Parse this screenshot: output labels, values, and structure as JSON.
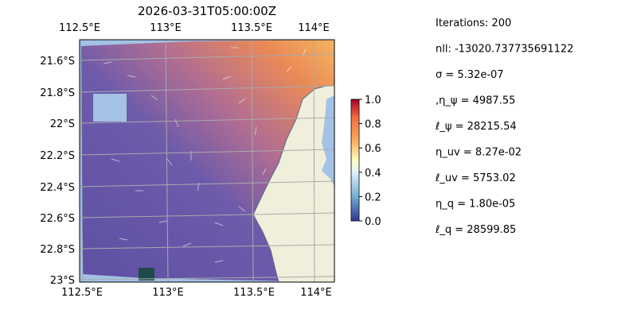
{
  "title": "2026-03-31T05:00:00Z",
  "map": {
    "x_labels_top": [
      "112.5°E",
      "113°E",
      "113.5°E",
      "114°E"
    ],
    "x_labels_bottom": [
      "112.5°E",
      "113°E",
      "113.5°E",
      "114°E"
    ],
    "y_labels": [
      "21.6°S",
      "21.8°S",
      "22°S",
      "22.2°S",
      "22.4°S",
      "22.6°S",
      "22.8°S",
      "23°S"
    ]
  },
  "colorbar": {
    "range": [
      0,
      1
    ],
    "ticks": [
      {
        "value": 0,
        "label": "0.0"
      },
      {
        "value": 0.2,
        "label": "0.2"
      },
      {
        "value": 0.4,
        "label": "0.4"
      },
      {
        "value": 0.6,
        "label": "0.6"
      },
      {
        "value": 0.8,
        "label": "0.8"
      },
      {
        "value": 1,
        "label": "1.0"
      }
    ]
  },
  "info": [
    "Iterations: 200",
    "nll: -13020.737735691122",
    "σ = 5.32e-07",
    ",η_ψ = 4987.55",
    "ℓ_ψ = 28215.54",
    "η_uv = 8.27e-02",
    "ℓ_uv = 5753.02",
    "η_q = 1.80e-05",
    "ℓ_q = 28599.85"
  ]
}
